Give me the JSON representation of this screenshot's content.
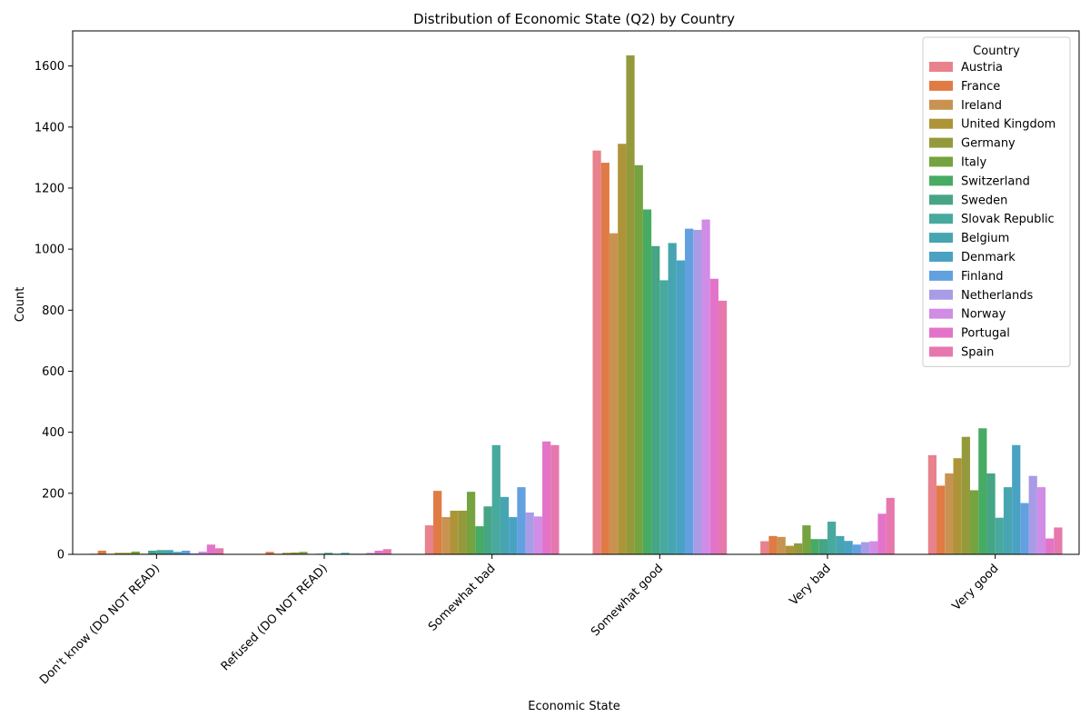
{
  "chart_data": {
    "type": "bar",
    "title": "Distribution of Economic State (Q2) by Country",
    "xlabel": "Economic State",
    "ylabel": "Count",
    "ylim": [
      0,
      1715
    ],
    "yticks": [
      0,
      200,
      400,
      600,
      800,
      1000,
      1200,
      1400,
      1600
    ],
    "grid": false,
    "legend": {
      "title": "Country",
      "position": "top-right"
    },
    "categories": [
      "Don't know (DO NOT READ)",
      "Refused (DO NOT READ)",
      "Somewhat bad",
      "Somewhat good",
      "Very bad",
      "Very good"
    ],
    "series": [
      {
        "name": "Austria",
        "color": "#e8828c",
        "values": [
          2,
          1,
          95,
          1323,
          43,
          325
        ]
      },
      {
        "name": "France",
        "color": "#e07b45",
        "values": [
          12,
          8,
          208,
          1283,
          60,
          225
        ]
      },
      {
        "name": "Ireland",
        "color": "#c89350",
        "values": [
          2,
          2,
          122,
          1052,
          57,
          265
        ]
      },
      {
        "name": "United Kingdom",
        "color": "#ad9438",
        "values": [
          5,
          5,
          143,
          1345,
          28,
          315
        ]
      },
      {
        "name": "Germany",
        "color": "#949a3c",
        "values": [
          5,
          6,
          143,
          1635,
          36,
          385
        ]
      },
      {
        "name": "Italy",
        "color": "#74a33f",
        "values": [
          9,
          8,
          205,
          1275,
          95,
          210
        ]
      },
      {
        "name": "Switzerland",
        "color": "#47ab64",
        "values": [
          2,
          1,
          92,
          1130,
          50,
          413
        ]
      },
      {
        "name": "Sweden",
        "color": "#45a585",
        "values": [
          12,
          2,
          157,
          1010,
          50,
          265
        ]
      },
      {
        "name": "Slovak Republic",
        "color": "#48a99e",
        "values": [
          14,
          5,
          358,
          898,
          107,
          120
        ]
      },
      {
        "name": "Belgium",
        "color": "#46a5b0",
        "values": [
          14,
          2,
          188,
          1020,
          60,
          220
        ]
      },
      {
        "name": "Denmark",
        "color": "#4aa2c3",
        "values": [
          8,
          5,
          122,
          963,
          44,
          358
        ]
      },
      {
        "name": "Finland",
        "color": "#62a0e0",
        "values": [
          12,
          2,
          220,
          1067,
          32,
          168
        ]
      },
      {
        "name": "Netherlands",
        "color": "#a99ce6",
        "values": [
          3,
          2,
          137,
          1063,
          40,
          257
        ]
      },
      {
        "name": "Norway",
        "color": "#d18ce6",
        "values": [
          9,
          5,
          124,
          1097,
          43,
          220
        ]
      },
      {
        "name": "Portugal",
        "color": "#e373c9",
        "values": [
          32,
          12,
          370,
          903,
          133,
          52
        ]
      },
      {
        "name": "Spain",
        "color": "#e678ad",
        "values": [
          20,
          17,
          358,
          831,
          185,
          88
        ]
      }
    ]
  }
}
